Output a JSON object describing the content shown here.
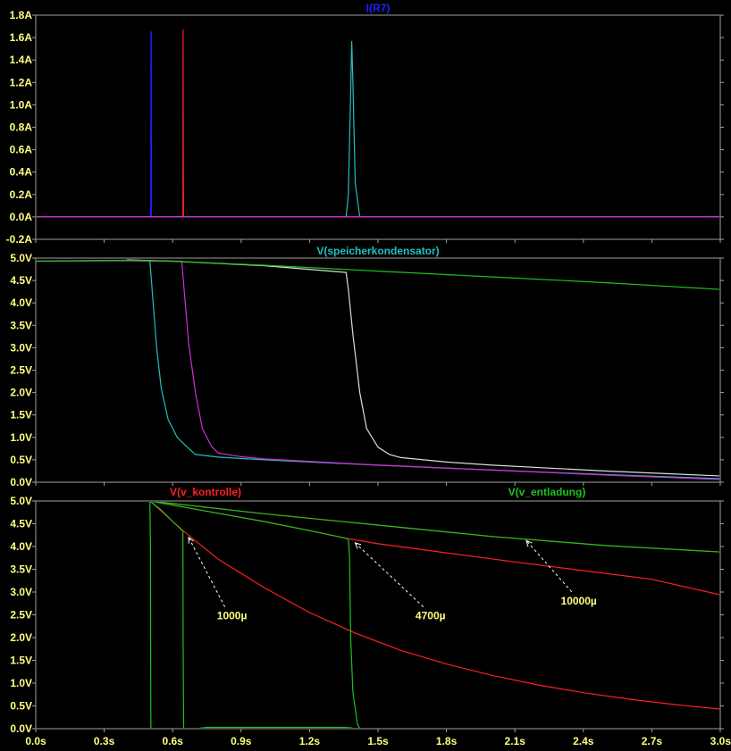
{
  "chart_data": [
    {
      "type": "line",
      "title": "I(R7)",
      "title_color": "#2020ff",
      "ylim": [
        -0.2,
        1.8
      ],
      "yticks": [
        "1.8A",
        "1.6A",
        "1.4A",
        "1.2A",
        "1.0A",
        "0.8A",
        "0.6A",
        "0.4A",
        "0.2A",
        "0.0A",
        "-0.2A"
      ],
      "ytick_values": [
        1.8,
        1.6,
        1.4,
        1.2,
        1.0,
        0.8,
        0.6,
        0.4,
        0.2,
        0.0,
        -0.2
      ],
      "grid": false,
      "series": [
        {
          "color": "#2020ff",
          "x": [
            0,
            0.504,
            0.505,
            0.506,
            0.507,
            3.0
          ],
          "y": [
            0,
            0,
            1.65,
            1.65,
            0,
            0
          ]
        },
        {
          "color": "#ff2020",
          "x": [
            0,
            0.645,
            0.646,
            0.647,
            0.648,
            3.0
          ],
          "y": [
            0,
            0,
            1.67,
            0.38,
            0,
            0
          ]
        },
        {
          "color": "#20c0c0",
          "x": [
            0,
            1.36,
            1.37,
            1.38,
            1.385,
            1.39,
            1.4,
            1.42,
            3.0
          ],
          "y": [
            0,
            0,
            0.2,
            1.1,
            1.57,
            1.2,
            0.3,
            0,
            0
          ]
        },
        {
          "color": "#d030d0",
          "x": [
            0,
            3.0
          ],
          "y": [
            0,
            0
          ]
        }
      ]
    },
    {
      "type": "line",
      "title": "V(speicherkondensator)",
      "title_color": "#20c0c0",
      "ylim": [
        0,
        5.0
      ],
      "yticks": [
        "5.0V",
        "4.5V",
        "4.0V",
        "3.5V",
        "3.0V",
        "2.5V",
        "2.0V",
        "1.5V",
        "1.0V",
        "0.5V",
        "0.0V"
      ],
      "ytick_values": [
        5.0,
        4.5,
        4.0,
        3.5,
        3.0,
        2.5,
        2.0,
        1.5,
        1.0,
        0.5,
        0.0
      ],
      "grid": false,
      "series": [
        {
          "color": "#20c0c0",
          "x": [
            0,
            0.4,
            0.5,
            0.51,
            0.53,
            0.55,
            0.58,
            0.62,
            0.66,
            0.7,
            0.8,
            1.0,
            1.5,
            2.0,
            2.5,
            3.0
          ],
          "y": [
            4.93,
            4.95,
            4.94,
            4.3,
            3.0,
            2.1,
            1.4,
            1.0,
            0.8,
            0.62,
            0.56,
            0.5,
            0.38,
            0.27,
            0.17,
            0.08
          ]
        },
        {
          "color": "#d030d0",
          "x": [
            0,
            0.4,
            0.64,
            0.65,
            0.67,
            0.7,
            0.73,
            0.77,
            0.8,
            0.9,
            1.0,
            1.5,
            2.0,
            2.5,
            3.0
          ],
          "y": [
            4.93,
            4.94,
            4.93,
            4.3,
            3.1,
            2.0,
            1.2,
            0.8,
            0.65,
            0.57,
            0.52,
            0.38,
            0.27,
            0.16,
            0.06
          ]
        },
        {
          "color": "#dcdcdc",
          "x": [
            0.4,
            0.6,
            1.0,
            1.36,
            1.37,
            1.39,
            1.42,
            1.45,
            1.5,
            1.55,
            1.6,
            1.8,
            2.0,
            2.5,
            3.0
          ],
          "y": [
            4.96,
            4.93,
            4.83,
            4.68,
            4.3,
            3.3,
            2.0,
            1.2,
            0.78,
            0.62,
            0.55,
            0.45,
            0.38,
            0.25,
            0.14
          ]
        },
        {
          "color": "#20c020",
          "x": [
            0,
            0.4,
            0.6,
            1.0,
            1.5,
            2.0,
            2.5,
            3.0
          ],
          "y": [
            4.93,
            4.95,
            4.93,
            4.84,
            4.71,
            4.58,
            4.45,
            4.3
          ]
        }
      ]
    },
    {
      "type": "line",
      "titles": [
        {
          "text": "V(v_kontrolle)",
          "color": "#ff2020"
        },
        {
          "text": "V(v_entladung)",
          "color": "#20c020"
        }
      ],
      "ylim": [
        0,
        5.0
      ],
      "yticks": [
        "5.0V",
        "4.5V",
        "4.0V",
        "3.5V",
        "3.0V",
        "2.5V",
        "2.0V",
        "1.5V",
        "1.0V",
        "0.5V",
        "0.0V"
      ],
      "ytick_values": [
        5.0,
        4.5,
        4.0,
        3.5,
        3.0,
        2.5,
        2.0,
        1.5,
        1.0,
        0.5,
        0.0
      ],
      "xlim": [
        0,
        3.0
      ],
      "xticks": [
        "0.0s",
        "0.3s",
        "0.6s",
        "0.9s",
        "1.2s",
        "1.5s",
        "1.8s",
        "2.1s",
        "2.4s",
        "2.7s",
        "3.0s"
      ],
      "xtick_values": [
        0,
        0.3,
        0.6,
        0.9,
        1.2,
        1.5,
        1.8,
        2.1,
        2.4,
        2.7,
        3.0
      ],
      "grid": false,
      "series": [
        {
          "color": "#ff2020",
          "x": [
            0,
            0.5,
            0.55,
            0.6,
            0.65,
            0.8,
            1.0,
            1.2,
            1.4,
            1.6,
            1.8,
            2.0,
            2.2,
            2.4,
            2.6,
            2.8,
            3.0
          ],
          "y": [
            5.0,
            5.0,
            4.78,
            4.55,
            4.33,
            3.72,
            3.1,
            2.55,
            2.1,
            1.72,
            1.42,
            1.17,
            0.96,
            0.79,
            0.65,
            0.53,
            0.43
          ]
        },
        {
          "color": "#ff2020",
          "x": [
            0.5,
            0.8,
            1.0,
            1.2,
            1.37,
            1.5,
            1.8,
            2.1,
            2.4,
            2.7,
            3.0
          ],
          "y": [
            5.0,
            4.73,
            4.55,
            4.35,
            4.17,
            4.06,
            3.86,
            3.66,
            3.47,
            3.28,
            2.94
          ]
        },
        {
          "color": "#ff2020",
          "x": [
            0.5,
            1.0,
            1.5,
            2.0,
            2.5,
            3.0
          ],
          "y": [
            5.0,
            4.72,
            4.47,
            4.22,
            4.02,
            3.88
          ]
        },
        {
          "color": "#20c020",
          "x": [
            0,
            0.5,
            0.503,
            0.504,
            0.505,
            3.0
          ],
          "y": [
            5.0,
            5.0,
            4.0,
            0.5,
            0,
            0
          ]
        },
        {
          "color": "#20c020",
          "x": [
            0.5,
            0.55,
            0.6,
            0.64,
            0.645,
            0.646,
            0.648,
            0.66,
            3.0
          ],
          "y": [
            5.0,
            4.8,
            4.55,
            4.36,
            4.34,
            2.0,
            0,
            0,
            0
          ]
        },
        {
          "color": "#20c020",
          "x": [
            0.5,
            0.8,
            1.0,
            1.2,
            1.36,
            1.37,
            1.375,
            1.38,
            1.39,
            1.41,
            1.42,
            3.0
          ],
          "y": [
            5.0,
            4.73,
            4.55,
            4.35,
            4.18,
            4.15,
            3.8,
            2.0,
            0.8,
            0.1,
            0,
            0
          ]
        },
        {
          "color": "#20c020",
          "x": [
            0.7,
            0.75,
            1.0,
            1.2,
            1.35,
            1.38,
            1.4
          ],
          "y": [
            0,
            0.03,
            0.03,
            0.03,
            0.03,
            0.02,
            0
          ]
        },
        {
          "color": "#20c020",
          "x": [
            0.5,
            1.0,
            1.5,
            2.0,
            2.5,
            3.0
          ],
          "y": [
            5.0,
            4.72,
            4.47,
            4.22,
            4.02,
            3.88
          ]
        }
      ],
      "annotations": [
        {
          "text": "1000µ",
          "x": 0.86,
          "y": 2.4,
          "arrow_to": [
            0.67,
            4.2
          ]
        },
        {
          "text": "4700µ",
          "x": 1.73,
          "y": 2.4,
          "arrow_to": [
            1.4,
            4.08
          ]
        },
        {
          "text": "10000µ",
          "x": 2.38,
          "y": 2.73,
          "arrow_to": [
            2.15,
            4.13
          ]
        }
      ]
    }
  ]
}
